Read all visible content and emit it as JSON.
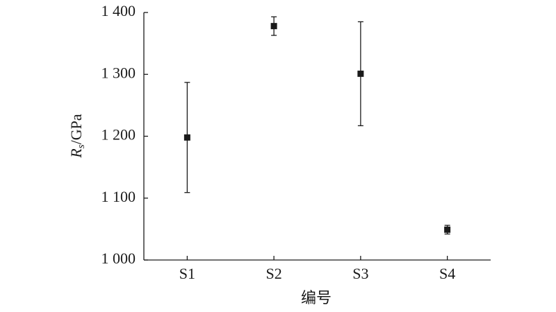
{
  "chart_data": {
    "type": "errorbar",
    "x_label": "编号",
    "y_label": "Rs/GPa",
    "categories": [
      "S1",
      "S2",
      "S3",
      "S4"
    ],
    "values": [
      1198,
      1378,
      1301,
      1049
    ],
    "errors": [
      89,
      15,
      84,
      7
    ],
    "color": "#1a1a1a",
    "ylim": [
      1000,
      1400
    ],
    "yticks": [
      {
        "value": 1000,
        "label": "1 000"
      },
      {
        "value": 1100,
        "label": "1 100"
      },
      {
        "value": 1200,
        "label": "1 200"
      },
      {
        "value": 1300,
        "label": "1 300"
      },
      {
        "value": 1400,
        "label": "1 400"
      }
    ],
    "grid": false
  }
}
